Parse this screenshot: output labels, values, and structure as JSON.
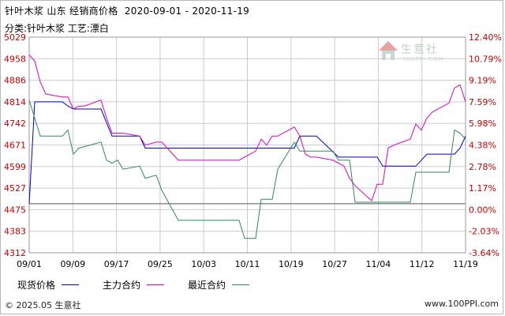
{
  "title": "针叶木浆 山东 经销商价格  2020-09-01 - 2020-11-19",
  "subtitle": "分类:针叶木浆 工艺:漂白",
  "logo": {
    "name": "生意社",
    "url": "100PPI.COM"
  },
  "footer": {
    "copyright": "© 2025.05 生意社",
    "site": "www.100PPI.com"
  },
  "colors": {
    "spot": "#0000cc",
    "main": "#e000c8",
    "recent": "#2e8b57",
    "left_axis": "#cc0000",
    "right_axis": "#cc0000",
    "grid": "#cccccc"
  },
  "chart_data": {
    "type": "line",
    "title": "针叶木浆 山东 经销商价格  2020-09-01 - 2020-11-19",
    "subtitle": "分类:针叶木浆 工艺:漂白",
    "x_ticks": [
      "09/01",
      "09/09",
      "09/17",
      "09/25",
      "10/03",
      "10/11",
      "10/19",
      "10/27",
      "11/04",
      "11/12",
      "11/19"
    ],
    "y_left": {
      "ticks": [
        "5029",
        "4958",
        "4886",
        "4814",
        "4742",
        "4671",
        "4599",
        "4527",
        "4475",
        "4383",
        "4312"
      ],
      "range": [
        4312,
        5029
      ]
    },
    "y_right": {
      "ticks": [
        "12.40%",
        "10.79%",
        "9.19%",
        "7.59%",
        "5.98%",
        "4.38%",
        "2.78%",
        "1.17%",
        "0.00%",
        "-2.03%",
        "-3.64%"
      ],
      "range": [
        -3.64,
        12.4
      ]
    },
    "grid": true,
    "legend_position": "bottom",
    "series": [
      {
        "name": "现货价格",
        "key": "spot",
        "values": [
          [
            "2020-09-01",
            4475
          ],
          [
            "2020-09-02",
            4814
          ],
          [
            "2020-09-03",
            4814
          ],
          [
            "2020-09-07",
            4814
          ],
          [
            "2020-09-08",
            4800
          ],
          [
            "2020-09-09",
            4790
          ],
          [
            "2020-09-14",
            4790
          ],
          [
            "2020-09-16",
            4700
          ],
          [
            "2020-09-21",
            4700
          ],
          [
            "2020-09-22",
            4660
          ],
          [
            "2020-10-19",
            4660
          ],
          [
            "2020-10-20",
            4700
          ],
          [
            "2020-10-23",
            4700
          ],
          [
            "2020-10-27",
            4630
          ],
          [
            "2020-11-03",
            4630
          ],
          [
            "2020-11-04",
            4600
          ],
          [
            "2020-11-10",
            4600
          ],
          [
            "2020-11-12",
            4640
          ],
          [
            "2020-11-17",
            4640
          ],
          [
            "2020-11-18",
            4660
          ],
          [
            "2020-11-19",
            4700
          ]
        ]
      },
      {
        "name": "主力合约",
        "key": "main",
        "values": [
          [
            "2020-09-01",
            4970
          ],
          [
            "2020-09-02",
            4950
          ],
          [
            "2020-09-03",
            4880
          ],
          [
            "2020-09-04",
            4840
          ],
          [
            "2020-09-07",
            4830
          ],
          [
            "2020-09-08",
            4830
          ],
          [
            "2020-09-09",
            4790
          ],
          [
            "2020-09-10",
            4800
          ],
          [
            "2020-09-11",
            4800
          ],
          [
            "2020-09-14",
            4820
          ],
          [
            "2020-09-15",
            4760
          ],
          [
            "2020-09-16",
            4710
          ],
          [
            "2020-09-18",
            4710
          ],
          [
            "2020-09-21",
            4700
          ],
          [
            "2020-09-22",
            4670
          ],
          [
            "2020-09-24",
            4680
          ],
          [
            "2020-09-25",
            4680
          ],
          [
            "2020-09-28",
            4620
          ],
          [
            "2020-10-09",
            4620
          ],
          [
            "2020-10-12",
            4650
          ],
          [
            "2020-10-13",
            4690
          ],
          [
            "2020-10-14",
            4670
          ],
          [
            "2020-10-15",
            4700
          ],
          [
            "2020-10-16",
            4700
          ],
          [
            "2020-10-19",
            4730
          ],
          [
            "2020-10-20",
            4700
          ],
          [
            "2020-10-21",
            4640
          ],
          [
            "2020-10-22",
            4630
          ],
          [
            "2020-10-23",
            4630
          ],
          [
            "2020-10-26",
            4620
          ],
          [
            "2020-10-27",
            4610
          ],
          [
            "2020-10-28",
            4600
          ],
          [
            "2020-10-29",
            4560
          ],
          [
            "2020-10-30",
            4535
          ],
          [
            "2020-11-02",
            4485
          ],
          [
            "2020-11-03",
            4540
          ],
          [
            "2020-11-04",
            4540
          ],
          [
            "2020-11-05",
            4660
          ],
          [
            "2020-11-06",
            4670
          ],
          [
            "2020-11-09",
            4690
          ],
          [
            "2020-11-10",
            4740
          ],
          [
            "2020-11-11",
            4720
          ],
          [
            "2020-11-12",
            4760
          ],
          [
            "2020-11-13",
            4780
          ],
          [
            "2020-11-16",
            4810
          ],
          [
            "2020-11-17",
            4860
          ],
          [
            "2020-11-18",
            4870
          ],
          [
            "2020-11-19",
            4814
          ]
        ]
      },
      {
        "name": "最近合约",
        "key": "recent",
        "values": [
          [
            "2020-09-01",
            4820
          ],
          [
            "2020-09-02",
            4760
          ],
          [
            "2020-09-03",
            4700
          ],
          [
            "2020-09-07",
            4700
          ],
          [
            "2020-09-08",
            4720
          ],
          [
            "2020-09-09",
            4640
          ],
          [
            "2020-09-10",
            4660
          ],
          [
            "2020-09-14",
            4680
          ],
          [
            "2020-09-15",
            4620
          ],
          [
            "2020-09-16",
            4610
          ],
          [
            "2020-09-17",
            4620
          ],
          [
            "2020-09-18",
            4590
          ],
          [
            "2020-09-21",
            4600
          ],
          [
            "2020-09-22",
            4560
          ],
          [
            "2020-09-24",
            4570
          ],
          [
            "2020-09-25",
            4520
          ],
          [
            "2020-09-28",
            4420
          ],
          [
            "2020-10-09",
            4420
          ],
          [
            "2020-10-10",
            4360
          ],
          [
            "2020-10-12",
            4360
          ],
          [
            "2020-10-13",
            4490
          ],
          [
            "2020-10-15",
            4490
          ],
          [
            "2020-10-16",
            4590
          ],
          [
            "2020-10-19",
            4680
          ],
          [
            "2020-10-20",
            4650
          ],
          [
            "2020-10-26",
            4650
          ],
          [
            "2020-10-27",
            4620
          ],
          [
            "2020-10-29",
            4620
          ],
          [
            "2020-10-30",
            4480
          ],
          [
            "2020-11-09",
            4480
          ],
          [
            "2020-11-10",
            4580
          ],
          [
            "2020-11-16",
            4580
          ],
          [
            "2020-11-17",
            4720
          ],
          [
            "2020-11-18",
            4710
          ],
          [
            "2020-11-19",
            4690
          ]
        ]
      }
    ]
  }
}
